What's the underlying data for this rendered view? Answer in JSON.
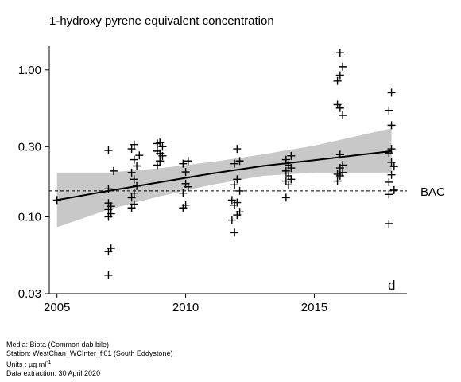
{
  "title": "1-hydroxy pyrene equivalent concentration",
  "panel_label": "d",
  "footer": {
    "media": "Media: Biota (Common dab bile)",
    "station": "Station: WestChan_WCInter_fi01 (South Eddystone)",
    "units_prefix": "Units : µg ml",
    "units_exp": "-1",
    "extraction": "Data extraction: 30 April 2020"
  },
  "chart_data": {
    "type": "scatter",
    "title": "1-hydroxy pyrene equivalent concentration",
    "xlabel": "",
    "ylabel": "",
    "y_scale": "log",
    "xlim": [
      2004.7,
      2018.6
    ],
    "ylim": [
      0.03,
      1.45
    ],
    "x_ticks": [
      2005,
      2010,
      2015
    ],
    "x_tick_labels": [
      "2005",
      "2010",
      "2015"
    ],
    "y_ticks": [
      0.03,
      0.1,
      0.3,
      1.0
    ],
    "y_tick_labels": [
      "0.03",
      "0.10",
      "0.30",
      "1.00"
    ],
    "grid": false,
    "reference_line": {
      "label": "BAC",
      "value": 0.15,
      "style": "dashed"
    },
    "trend": {
      "x": [
        2005,
        2007,
        2009,
        2011,
        2013,
        2015,
        2018
      ],
      "y": [
        0.13,
        0.15,
        0.172,
        0.197,
        0.222,
        0.243,
        0.28
      ]
    },
    "confidence_band": {
      "x": [
        2005,
        2007,
        2009,
        2011,
        2013,
        2015,
        2018
      ],
      "lower": [
        0.085,
        0.112,
        0.138,
        0.165,
        0.19,
        0.2,
        0.2
      ],
      "upper": [
        0.2,
        0.2,
        0.214,
        0.236,
        0.266,
        0.305,
        0.4
      ]
    },
    "points": [
      {
        "x": 2005.0,
        "y": 0.13
      },
      {
        "x": 2007.0,
        "y": 0.04
      },
      {
        "x": 2007.0,
        "y": 0.058
      },
      {
        "x": 2007.1,
        "y": 0.061
      },
      {
        "x": 2007.0,
        "y": 0.1
      },
      {
        "x": 2007.1,
        "y": 0.105
      },
      {
        "x": 2007.0,
        "y": 0.112
      },
      {
        "x": 2007.1,
        "y": 0.118
      },
      {
        "x": 2007.0,
        "y": 0.124
      },
      {
        "x": 2007.0,
        "y": 0.155
      },
      {
        "x": 2007.2,
        "y": 0.205
      },
      {
        "x": 2007.0,
        "y": 0.283
      },
      {
        "x": 2007.9,
        "y": 0.115
      },
      {
        "x": 2008.0,
        "y": 0.122
      },
      {
        "x": 2007.9,
        "y": 0.135
      },
      {
        "x": 2008.0,
        "y": 0.145
      },
      {
        "x": 2008.1,
        "y": 0.162
      },
      {
        "x": 2008.0,
        "y": 0.18
      },
      {
        "x": 2007.9,
        "y": 0.2
      },
      {
        "x": 2008.1,
        "y": 0.222
      },
      {
        "x": 2008.0,
        "y": 0.245
      },
      {
        "x": 2008.2,
        "y": 0.262
      },
      {
        "x": 2007.9,
        "y": 0.29
      },
      {
        "x": 2008.0,
        "y": 0.31
      },
      {
        "x": 2008.9,
        "y": 0.225
      },
      {
        "x": 2009.0,
        "y": 0.24
      },
      {
        "x": 2009.1,
        "y": 0.26
      },
      {
        "x": 2009.0,
        "y": 0.27
      },
      {
        "x": 2008.9,
        "y": 0.28
      },
      {
        "x": 2009.1,
        "y": 0.3
      },
      {
        "x": 2008.9,
        "y": 0.315
      },
      {
        "x": 2009.0,
        "y": 0.32
      },
      {
        "x": 2009.9,
        "y": 0.115
      },
      {
        "x": 2010.0,
        "y": 0.12
      },
      {
        "x": 2009.9,
        "y": 0.145
      },
      {
        "x": 2010.1,
        "y": 0.16
      },
      {
        "x": 2010.0,
        "y": 0.168
      },
      {
        "x": 2010.0,
        "y": 0.202
      },
      {
        "x": 2009.9,
        "y": 0.23
      },
      {
        "x": 2010.1,
        "y": 0.24
      },
      {
        "x": 2011.9,
        "y": 0.078
      },
      {
        "x": 2011.8,
        "y": 0.095
      },
      {
        "x": 2012.0,
        "y": 0.103
      },
      {
        "x": 2012.1,
        "y": 0.108
      },
      {
        "x": 2011.9,
        "y": 0.12
      },
      {
        "x": 2012.0,
        "y": 0.125
      },
      {
        "x": 2011.8,
        "y": 0.13
      },
      {
        "x": 2012.1,
        "y": 0.15
      },
      {
        "x": 2011.9,
        "y": 0.165
      },
      {
        "x": 2012.0,
        "y": 0.18
      },
      {
        "x": 2011.9,
        "y": 0.23
      },
      {
        "x": 2012.1,
        "y": 0.24
      },
      {
        "x": 2012.0,
        "y": 0.29
      },
      {
        "x": 2013.9,
        "y": 0.135
      },
      {
        "x": 2014.0,
        "y": 0.165
      },
      {
        "x": 2013.9,
        "y": 0.175
      },
      {
        "x": 2014.1,
        "y": 0.18
      },
      {
        "x": 2014.0,
        "y": 0.19
      },
      {
        "x": 2013.9,
        "y": 0.205
      },
      {
        "x": 2014.1,
        "y": 0.215
      },
      {
        "x": 2014.0,
        "y": 0.225
      },
      {
        "x": 2013.9,
        "y": 0.245
      },
      {
        "x": 2014.1,
        "y": 0.26
      },
      {
        "x": 2015.9,
        "y": 0.175
      },
      {
        "x": 2016.0,
        "y": 0.19
      },
      {
        "x": 2015.9,
        "y": 0.195
      },
      {
        "x": 2016.1,
        "y": 0.2
      },
      {
        "x": 2016.0,
        "y": 0.215
      },
      {
        "x": 2016.1,
        "y": 0.225
      },
      {
        "x": 2016.0,
        "y": 0.265
      },
      {
        "x": 2016.1,
        "y": 0.49
      },
      {
        "x": 2016.0,
        "y": 0.55
      },
      {
        "x": 2015.9,
        "y": 0.58
      },
      {
        "x": 2015.9,
        "y": 0.84
      },
      {
        "x": 2016.0,
        "y": 0.92
      },
      {
        "x": 2016.1,
        "y": 1.05
      },
      {
        "x": 2016.0,
        "y": 1.31
      },
      {
        "x": 2017.9,
        "y": 0.09
      },
      {
        "x": 2017.9,
        "y": 0.142
      },
      {
        "x": 2018.1,
        "y": 0.152
      },
      {
        "x": 2017.9,
        "y": 0.172
      },
      {
        "x": 2018.0,
        "y": 0.193
      },
      {
        "x": 2018.1,
        "y": 0.22
      },
      {
        "x": 2018.0,
        "y": 0.235
      },
      {
        "x": 2017.9,
        "y": 0.272
      },
      {
        "x": 2018.0,
        "y": 0.29
      },
      {
        "x": 2018.0,
        "y": 0.42
      },
      {
        "x": 2017.9,
        "y": 0.53
      },
      {
        "x": 2018.0,
        "y": 0.7
      }
    ]
  }
}
